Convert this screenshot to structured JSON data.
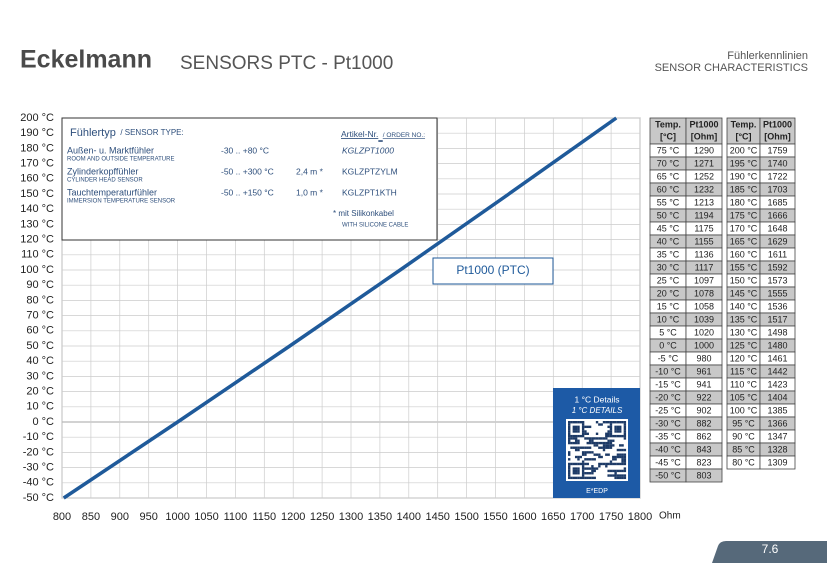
{
  "header": {
    "logo": "Eckelmann",
    "title": "SENSORS PTC - Pt1000",
    "subtitle_de": "Fühlerkennlinien",
    "subtitle_en": "SENSOR CHARACTERISTICS"
  },
  "chart_data": {
    "type": "line",
    "x_label": "Ohm",
    "annotation": "Pt1000  (PTC)",
    "color": "#1f5a9a",
    "grid": true,
    "x": [
      803,
      1000,
      1194,
      1385,
      1573,
      1759
    ],
    "values": [
      -50,
      0,
      50,
      100,
      150,
      200
    ],
    "xlim": [
      800,
      1800
    ],
    "xticks": [
      800,
      850,
      900,
      950,
      1000,
      1050,
      1100,
      1150,
      1200,
      1250,
      1300,
      1350,
      1400,
      1450,
      1500,
      1550,
      1600,
      1650,
      1700,
      1750,
      1800
    ],
    "ylim": [
      -50,
      200
    ],
    "yticks": [
      {
        "value": -50,
        "label": "-50 °C"
      },
      {
        "value": -40,
        "label": "-40 °C"
      },
      {
        "value": -30,
        "label": "-30 °C"
      },
      {
        "value": -20,
        "label": "-20 °C"
      },
      {
        "value": -10,
        "label": "-10 °C"
      },
      {
        "value": 0,
        "label": "0 °C"
      },
      {
        "value": 10,
        "label": "10 °C"
      },
      {
        "value": 20,
        "label": "20 °C"
      },
      {
        "value": 30,
        "label": "30 °C"
      },
      {
        "value": 40,
        "label": "40 °C"
      },
      {
        "value": 50,
        "label": "50 °C"
      },
      {
        "value": 60,
        "label": "60 °C"
      },
      {
        "value": 70,
        "label": "70 °C"
      },
      {
        "value": 80,
        "label": "80 °C"
      },
      {
        "value": 90,
        "label": "90 °C"
      },
      {
        "value": 100,
        "label": "100 °C"
      },
      {
        "value": 110,
        "label": "110 °C"
      },
      {
        "value": 120,
        "label": "120 °C"
      },
      {
        "value": 130,
        "label": "130 °C"
      },
      {
        "value": 140,
        "label": "140 °C"
      },
      {
        "value": 150,
        "label": "150 °C"
      },
      {
        "value": 160,
        "label": "160 °C"
      },
      {
        "value": 170,
        "label": "170 °C"
      },
      {
        "value": 180,
        "label": "180 °C"
      },
      {
        "value": 190,
        "label": "190 °C"
      },
      {
        "value": 200,
        "label": "200 °C"
      }
    ]
  },
  "sensor_box": {
    "title": "Fühlertyp",
    "title_en": "/ SENSOR TYPE:",
    "order": "Artikel-Nr.",
    "order_en": "/ ORDER NO.:",
    "rows": [
      {
        "name": "Außen- u. Marktfühler",
        "name_en": "ROOM AND OUTSIDE TEMPERATURE",
        "range": "-30 .. +80 °C",
        "article": "KGLZPT1000"
      },
      {
        "name": "Zylinderkopffühler",
        "name_en": "CYLINDER HEAD SENSOR",
        "range": "-50 .. +300 °C",
        "cable": "2,4 m *",
        "article": "KGLZPTZYLM"
      },
      {
        "name": "Tauchtemperaturfühler",
        "name_en": "IMMERSION TEMPERATURE SENSOR",
        "range": "-50 .. +150 °C",
        "cable": "1,0 m *",
        "article": "KGLZPT1KTH"
      }
    ],
    "note": "* mit Silikonkabel",
    "note_en": "WITH SILICONE CABLE"
  },
  "details_box": {
    "label": "1 °C Details",
    "label_en": "1 °C DETAILS",
    "code": "E*EDP"
  },
  "tables": [
    {
      "header": [
        [
          "Temp.",
          "[°C]"
        ],
        [
          "Pt1000",
          "[Ohm]"
        ]
      ],
      "rows": [
        [
          "75 °C",
          1290
        ],
        [
          "70 °C",
          1271
        ],
        [
          "65 °C",
          1252
        ],
        [
          "60 °C",
          1232
        ],
        [
          "55 °C",
          1213
        ],
        [
          "50 °C",
          1194
        ],
        [
          "45 °C",
          1175
        ],
        [
          "40 °C",
          1155
        ],
        [
          "35 °C",
          1136
        ],
        [
          "30 °C",
          1117
        ],
        [
          "25 °C",
          1097
        ],
        [
          "20 °C",
          1078
        ],
        [
          "15 °C",
          1058
        ],
        [
          "10 °C",
          1039
        ],
        [
          "5 °C",
          1020
        ],
        [
          "0 °C",
          1000
        ],
        [
          "-5 °C",
          980
        ],
        [
          "-10 °C",
          961
        ],
        [
          "-15 °C",
          941
        ],
        [
          "-20 °C",
          922
        ],
        [
          "-25 °C",
          902
        ],
        [
          "-30 °C",
          882
        ],
        [
          "-35 °C",
          862
        ],
        [
          "-40 °C",
          843
        ],
        [
          "-45 °C",
          823
        ],
        [
          "-50 °C",
          803
        ]
      ]
    },
    {
      "header": [
        [
          "Temp.",
          "[°C]"
        ],
        [
          "Pt1000",
          "[Ohm]"
        ]
      ],
      "rows": [
        [
          "200 °C",
          1759
        ],
        [
          "195 °C",
          1740
        ],
        [
          "190 °C",
          1722
        ],
        [
          "185 °C",
          1703
        ],
        [
          "180 °C",
          1685
        ],
        [
          "175 °C",
          1666
        ],
        [
          "170 °C",
          1648
        ],
        [
          "165 °C",
          1629
        ],
        [
          "160 °C",
          1611
        ],
        [
          "155 °C",
          1592
        ],
        [
          "150 °C",
          1573
        ],
        [
          "145 °C",
          1555
        ],
        [
          "140 °C",
          1536
        ],
        [
          "135 °C",
          1517
        ],
        [
          "130 °C",
          1498
        ],
        [
          "125 °C",
          1480
        ],
        [
          "120 °C",
          1461
        ],
        [
          "115 °C",
          1442
        ],
        [
          "110 °C",
          1423
        ],
        [
          "105 °C",
          1404
        ],
        [
          "100 °C",
          1385
        ],
        [
          "95 °C",
          1366
        ],
        [
          "90 °C",
          1347
        ],
        [
          "85 °C",
          1328
        ],
        [
          "80 °C",
          1309
        ]
      ]
    }
  ],
  "page_number": "7.6"
}
